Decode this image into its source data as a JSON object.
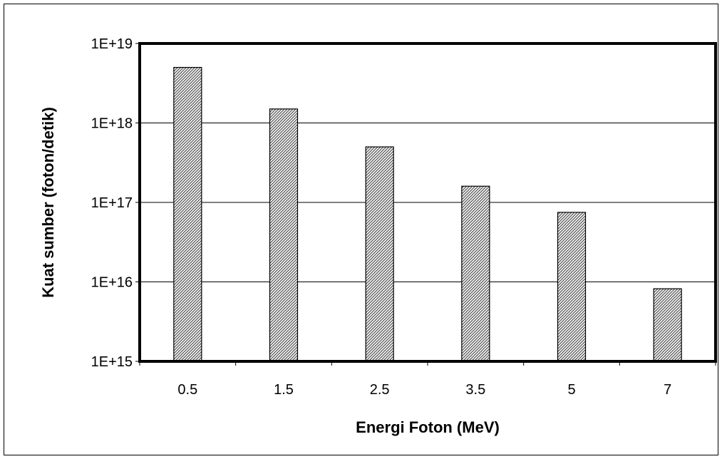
{
  "chart_data": {
    "type": "bar",
    "xlabel": "Energi Foton (MeV)",
    "ylabel": "Kuat sumber (foton/detik)",
    "categories": [
      "0.5",
      "1.5",
      "2.5",
      "3.5",
      "5",
      "7"
    ],
    "values": [
      5e+18,
      1.5e+18,
      5e+17,
      1.6e+17,
      7.5e+16,
      8200000000000000.0
    ],
    "y_scale": "log",
    "ylim": [
      1000000000000000.0,
      1e+19
    ],
    "y_tick_labels": [
      "1E+15",
      "1E+16",
      "1E+17",
      "1E+18",
      "1E+19"
    ],
    "grid": "horizontal major",
    "legend": "none",
    "bar_fill": "diagonal hatch",
    "colors": {
      "bar_stroke": "#000000",
      "hatch": "#555555",
      "grid": "#000000"
    }
  }
}
